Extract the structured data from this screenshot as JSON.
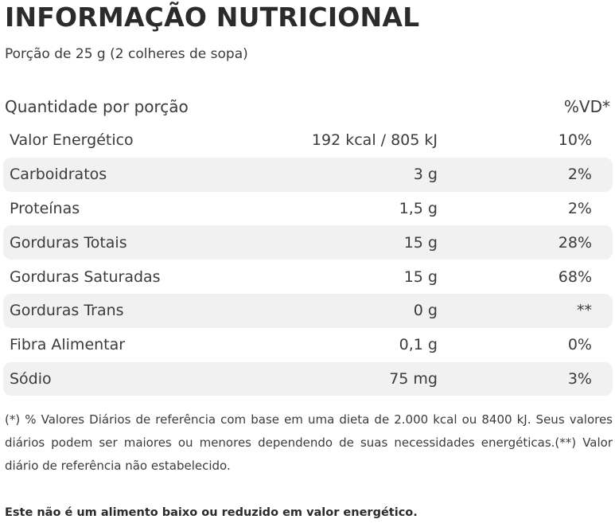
{
  "title": "INFORMAÇÃO NUTRICIONAL",
  "portion": "Porção de 25 g (2 colheres de sopa)",
  "table": {
    "header_quantity": "Quantidade por porção",
    "header_vd": "%VD*",
    "rows": [
      {
        "name": "Valor Energético",
        "amount": "192 kcal / 805 kJ",
        "vd": "10%"
      },
      {
        "name": "Carboidratos",
        "amount": "3 g",
        "vd": "2%"
      },
      {
        "name": "Proteínas",
        "amount": "1,5 g",
        "vd": "2%"
      },
      {
        "name": "Gorduras Totais",
        "amount": "15 g",
        "vd": "28%"
      },
      {
        "name": "Gorduras Saturadas",
        "amount": "15 g",
        "vd": "68%"
      },
      {
        "name": "Gorduras Trans",
        "amount": "0 g",
        "vd": "**"
      },
      {
        "name": "Fibra Alimentar",
        "amount": "0,1 g",
        "vd": "0%"
      },
      {
        "name": "Sódio",
        "amount": "75 mg",
        "vd": "3%"
      }
    ]
  },
  "footnote": "(*) % Valores Diários de referência com base em uma dieta de 2.000 kcal ou 8400 kJ. Seus valores diários podem ser maiores ou menores dependendo de suas necessidades energéticas.(**) Valor diário de referência não estabelecido.",
  "disclaimer": "Este não é um alimento baixo ou reduzido em valor energético."
}
